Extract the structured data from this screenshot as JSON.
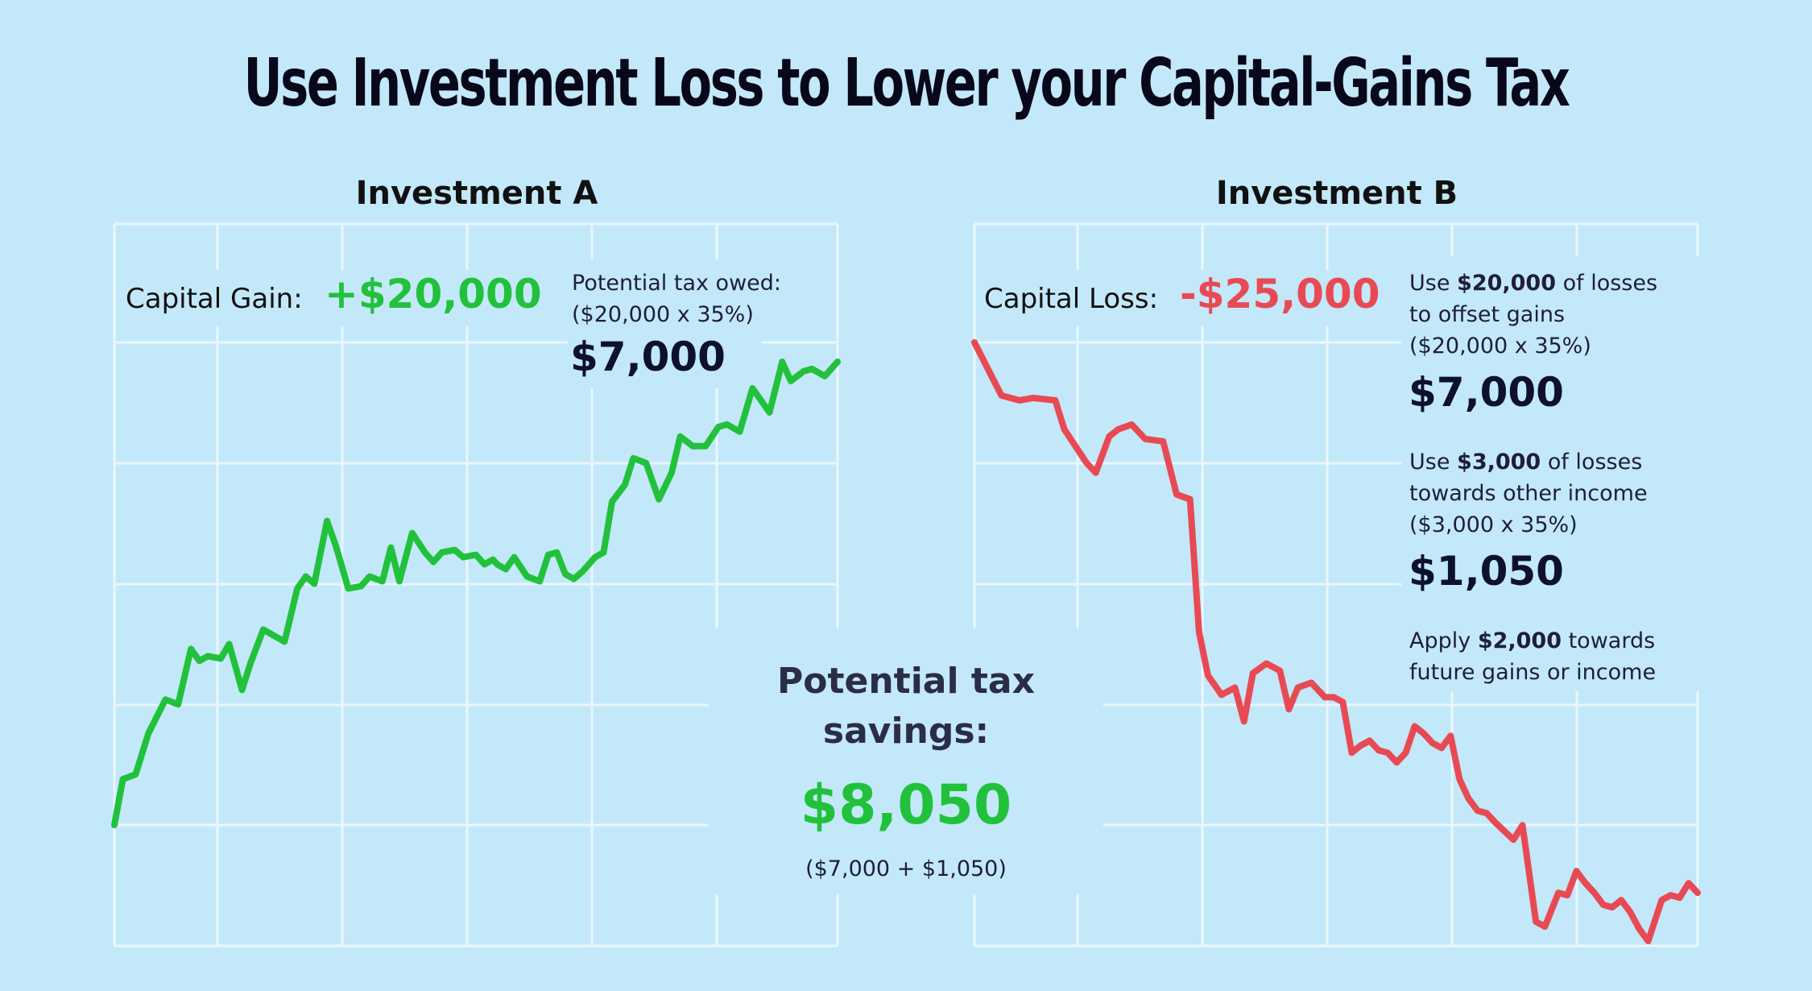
{
  "title": "Use Investment Loss to Lower your Capital-Gains Tax",
  "colors": {
    "background": "#c3e8f9",
    "gain": "#22c13c",
    "loss": "#e84a54",
    "grid": "#e9f7fd"
  },
  "investment_a": {
    "title": "Investment A",
    "capital_label": "Capital Gain:",
    "capital_value": "+$20,000",
    "tax_label": "Potential tax owed:",
    "tax_formula": "($20,000 x 35%)",
    "tax_value": "$7,000"
  },
  "investment_b": {
    "title": "Investment B",
    "capital_label": "Capital Loss:",
    "capital_value": "-$25,000",
    "offset_pre": "Use ",
    "offset_amount": "$20,000",
    "offset_post": " of losses",
    "offset_line2": "to offset gains",
    "offset_formula": "($20,000 x 35%)",
    "offset_value": "$7,000",
    "other_pre": "Use ",
    "other_amount": "$3,000",
    "other_post": " of losses",
    "other_line2": "towards other income",
    "other_formula": "($3,000 x 35%)",
    "other_value": "$1,050",
    "carry_pre": "Apply ",
    "carry_amount": "$2,000",
    "carry_post": " towards",
    "carry_line2": "future gains or income"
  },
  "savings": {
    "title_line1": "Potential tax",
    "title_line2": "savings:",
    "value": "$8,050",
    "formula": "($7,000 + $1,050)"
  },
  "chart_data": [
    {
      "type": "line",
      "name": "Investment A",
      "title": "Investment A",
      "color": "#22c13c",
      "start_value": 0,
      "end_value": 20000,
      "x": [
        0,
        2,
        5,
        8,
        12,
        15,
        18,
        20,
        22,
        25,
        27,
        30,
        32,
        35,
        37,
        40,
        43,
        45,
        47,
        50,
        52,
        53,
        55,
        58,
        60,
        63,
        65,
        67,
        70,
        73,
        75,
        77,
        80,
        82,
        85,
        87,
        89,
        90,
        92,
        94,
        97,
        100,
        102,
        104,
        106,
        108,
        110,
        113,
        115,
        117,
        120,
        122,
        125,
        128,
        131,
        133,
        136,
        139,
        142,
        144,
        147,
        150,
        154,
        157,
        159,
        162,
        164,
        167,
        170
      ],
      "y": [
        0,
        1900,
        2100,
        3800,
        5200,
        5000,
        7300,
        6800,
        7000,
        6900,
        7500,
        5600,
        6700,
        8100,
        7900,
        7600,
        9800,
        10300,
        10000,
        12600,
        11600,
        11000,
        9800,
        9900,
        10300,
        10100,
        11500,
        10100,
        12100,
        11300,
        10900,
        11300,
        11400,
        11100,
        11200,
        10800,
        11000,
        10800,
        10600,
        11100,
        10300,
        10100,
        11200,
        11300,
        10400,
        10200,
        10500,
        11100,
        11300,
        13400,
        14100,
        15200,
        15000,
        13500,
        14600,
        16100,
        15700,
        15700,
        16500,
        16600,
        16300,
        18100,
        17100,
        19200,
        18400,
        18800,
        18900,
        18600,
        19200
      ]
    },
    {
      "type": "line",
      "name": "Investment B",
      "title": "Investment B",
      "color": "#e84a54",
      "start_value": 0,
      "end_value": -25000,
      "x": [
        0,
        6,
        10,
        13,
        18,
        20,
        25,
        27,
        30,
        32,
        35,
        38,
        42,
        45,
        48,
        50,
        52,
        55,
        58,
        60,
        62,
        65,
        68,
        70,
        72,
        75,
        78,
        80,
        82,
        84,
        86,
        88,
        90,
        92,
        94,
        96,
        98,
        100,
        102,
        104,
        106,
        108,
        110,
        112,
        114,
        116,
        120,
        122,
        125,
        127,
        130,
        132,
        134,
        136,
        138,
        140,
        142,
        144,
        146,
        148,
        150,
        153,
        155,
        157,
        159,
        161
      ],
      "y": [
        0,
        -2200,
        -2400,
        -2300,
        -2400,
        -3600,
        -5000,
        -5400,
        -3900,
        -3600,
        -3400,
        -4000,
        -4100,
        -6300,
        -6500,
        -12000,
        -13800,
        -14600,
        -14300,
        -15700,
        -13700,
        -13300,
        -13600,
        -15200,
        -14300,
        -14100,
        -14700,
        -14700,
        -14900,
        -17000,
        -16700,
        -16500,
        -16900,
        -17000,
        -17400,
        -17000,
        -15900,
        -16200,
        -16600,
        -16800,
        -16300,
        -18100,
        -18900,
        -19400,
        -19500,
        -19900,
        -20600,
        -20000,
        -24000,
        -24200,
        -22800,
        -22900,
        -21900,
        -22400,
        -22800,
        -23300,
        -23400,
        -23100,
        -23600,
        -24300,
        -24800,
        -23100,
        -22900,
        -23000,
        -22400,
        -22800
      ]
    }
  ]
}
